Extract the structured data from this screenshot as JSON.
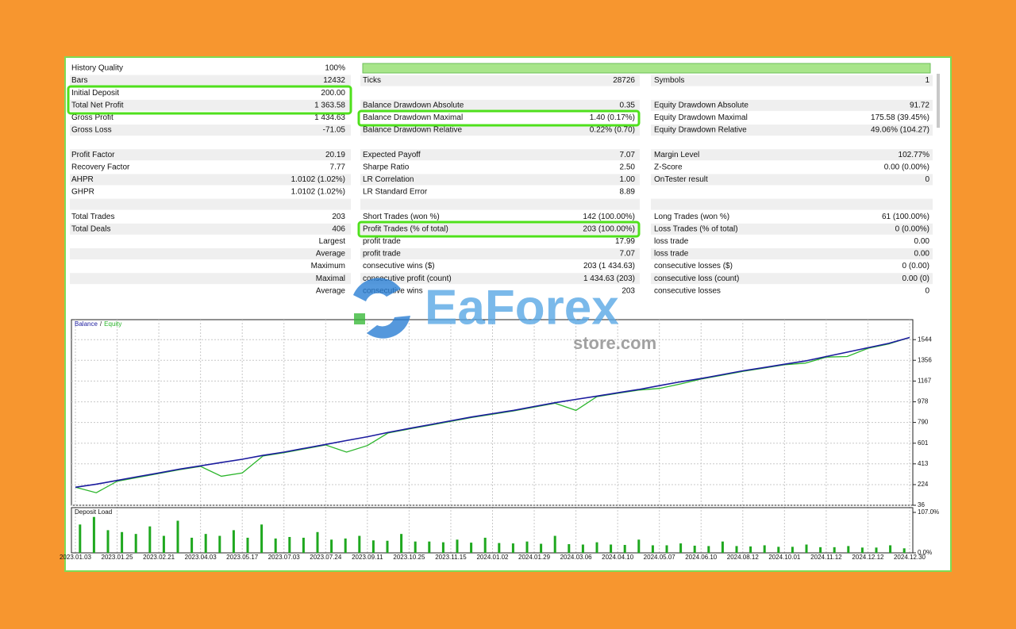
{
  "report": {
    "quality_row": 0,
    "rows": [
      [
        {
          "label": "History Quality",
          "value": "100%"
        },
        null,
        null
      ],
      [
        {
          "label": "Bars",
          "value": "12432"
        },
        {
          "label": "Ticks",
          "value": "28726"
        },
        {
          "label": "Symbols",
          "value": "1"
        }
      ],
      [
        {
          "label": "Initial Deposit",
          "value": "200.00"
        },
        null,
        null
      ],
      [
        {
          "label": "Total Net Profit",
          "value": "1 363.58"
        },
        {
          "label": "Balance Drawdown Absolute",
          "value": "0.35"
        },
        {
          "label": "Equity Drawdown Absolute",
          "value": "91.72"
        }
      ],
      [
        {
          "label": "Gross Profit",
          "value": "1 434.63"
        },
        {
          "label": "Balance Drawdown Maximal",
          "value": "1.40 (0.17%)"
        },
        {
          "label": "Equity Drawdown Maximal",
          "value": "175.58 (39.45%)"
        }
      ],
      [
        {
          "label": "Gross Loss",
          "value": "-71.05"
        },
        {
          "label": "Balance Drawdown Relative",
          "value": "0.22% (0.70)"
        },
        {
          "label": "Equity Drawdown Relative",
          "value": "49.06% (104.27)"
        }
      ],
      [
        null,
        null,
        null
      ],
      [
        {
          "label": "Profit Factor",
          "value": "20.19"
        },
        {
          "label": "Expected Payoff",
          "value": "7.07"
        },
        {
          "label": "Margin Level",
          "value": "102.77%"
        }
      ],
      [
        {
          "label": "Recovery Factor",
          "value": "7.77"
        },
        {
          "label": "Sharpe Ratio",
          "value": "2.50"
        },
        {
          "label": "Z-Score",
          "value": "0.00 (0.00%)"
        }
      ],
      [
        {
          "label": "AHPR",
          "value": "1.0102 (1.02%)"
        },
        {
          "label": "LR Correlation",
          "value": "1.00"
        },
        {
          "label": "OnTester result",
          "value": "0"
        }
      ],
      [
        {
          "label": "GHPR",
          "value": "1.0102 (1.02%)"
        },
        {
          "label": "LR Standard Error",
          "value": "8.89"
        },
        null
      ],
      [
        null,
        null,
        null
      ],
      [
        {
          "label": "Total Trades",
          "value": "203"
        },
        {
          "label": "Short Trades (won %)",
          "value": "142 (100.00%)"
        },
        {
          "label": "Long Trades (won %)",
          "value": "61 (100.00%)"
        }
      ],
      [
        {
          "label": "Total Deals",
          "value": "406"
        },
        {
          "label": "Profit Trades (% of total)",
          "value": "203 (100.00%)"
        },
        {
          "label": "Loss Trades (% of total)",
          "value": "0 (0.00%)"
        }
      ],
      [
        {
          "heading": "Largest"
        },
        {
          "label": "profit trade",
          "value": "17.99"
        },
        {
          "label": "loss trade",
          "value": "0.00"
        }
      ],
      [
        {
          "heading": "Average"
        },
        {
          "label": "profit trade",
          "value": "7.07"
        },
        {
          "label": "loss trade",
          "value": "0.00"
        }
      ],
      [
        {
          "heading": "Maximum"
        },
        {
          "label": "consecutive wins ($)",
          "value": "203 (1 434.63)"
        },
        {
          "label": "consecutive losses ($)",
          "value": "0 (0.00)"
        }
      ],
      [
        {
          "heading": "Maximal"
        },
        {
          "label": "consecutive profit (count)",
          "value": "1 434.63 (203)"
        },
        {
          "label": "consecutive loss (count)",
          "value": "0.00 (0)"
        }
      ],
      [
        {
          "heading": "Average"
        },
        {
          "label": "consecutive wins",
          "value": "203"
        },
        {
          "label": "consecutive losses",
          "value": "0"
        }
      ]
    ]
  },
  "watermark": {
    "brand": "EaForex",
    "domain": "store.com"
  },
  "chart_data": [
    {
      "type": "line",
      "legend_separator": "/",
      "categories": [
        "2023.01.03",
        null,
        "2023.01.25",
        null,
        "2023.02.21",
        null,
        "2023.04.03",
        null,
        "2023.05.17",
        null,
        "2023.07.03",
        null,
        "2023.07.24",
        null,
        "2023.09.11",
        null,
        "2023.10.25",
        null,
        "2023.11.15",
        null,
        "2024.01.02",
        null,
        "2024.01.29",
        null,
        "2024.03.06",
        null,
        "2024.04.10",
        null,
        "2024.05.07",
        null,
        "2024.06.10",
        null,
        "2024.08.12",
        null,
        "2024.10.01",
        null,
        "2024.11.12",
        null,
        "2024.12.12",
        null,
        "2024.12.30"
      ],
      "series": [
        {
          "name": "Balance",
          "color": "#1b1b9e",
          "values": [
            200,
            228,
            262,
            297,
            330,
            365,
            395,
            425,
            455,
            490,
            520,
            555,
            590,
            625,
            660,
            700,
            735,
            770,
            805,
            840,
            870,
            900,
            935,
            970,
            1000,
            1030,
            1060,
            1090,
            1125,
            1160,
            1190,
            1225,
            1260,
            1290,
            1320,
            1350,
            1390,
            1430,
            1470,
            1510,
            1563.58
          ]
        },
        {
          "name": "Equity",
          "color": "#2bb52b",
          "values": [
            200,
            150,
            255,
            290,
            325,
            360,
            390,
            300,
            330,
            485,
            515,
            550,
            585,
            520,
            580,
            695,
            730,
            765,
            800,
            835,
            865,
            895,
            930,
            965,
            900,
            1025,
            1055,
            1085,
            1100,
            1140,
            1185,
            1220,
            1255,
            1285,
            1315,
            1330,
            1385,
            1390,
            1465,
            1505,
            1563.58
          ]
        }
      ],
      "ylim": [
        36,
        1726
      ],
      "yticks": [
        36,
        224,
        413,
        601,
        790,
        978,
        1167,
        1356,
        1544
      ],
      "grid": true
    },
    {
      "type": "bar",
      "title": "Deposit Load",
      "color": "#1fa81f",
      "values": [
        75,
        95,
        60,
        55,
        50,
        70,
        45,
        85,
        40,
        50,
        45,
        60,
        40,
        75,
        38,
        42,
        40,
        55,
        35,
        38,
        45,
        33,
        32,
        50,
        30,
        30,
        28,
        35,
        27,
        40,
        26,
        25,
        30,
        24,
        45,
        23,
        22,
        28,
        22,
        21,
        35,
        20,
        20,
        25,
        19,
        18,
        30,
        18,
        17,
        20,
        16,
        16,
        22,
        15,
        15,
        18,
        14,
        14,
        20,
        12
      ],
      "ylim": [
        0,
        107
      ],
      "yticks": [
        {
          "value": 0,
          "label": "0.0%"
        },
        {
          "value": 107,
          "label": "107.0%"
        }
      ]
    }
  ]
}
